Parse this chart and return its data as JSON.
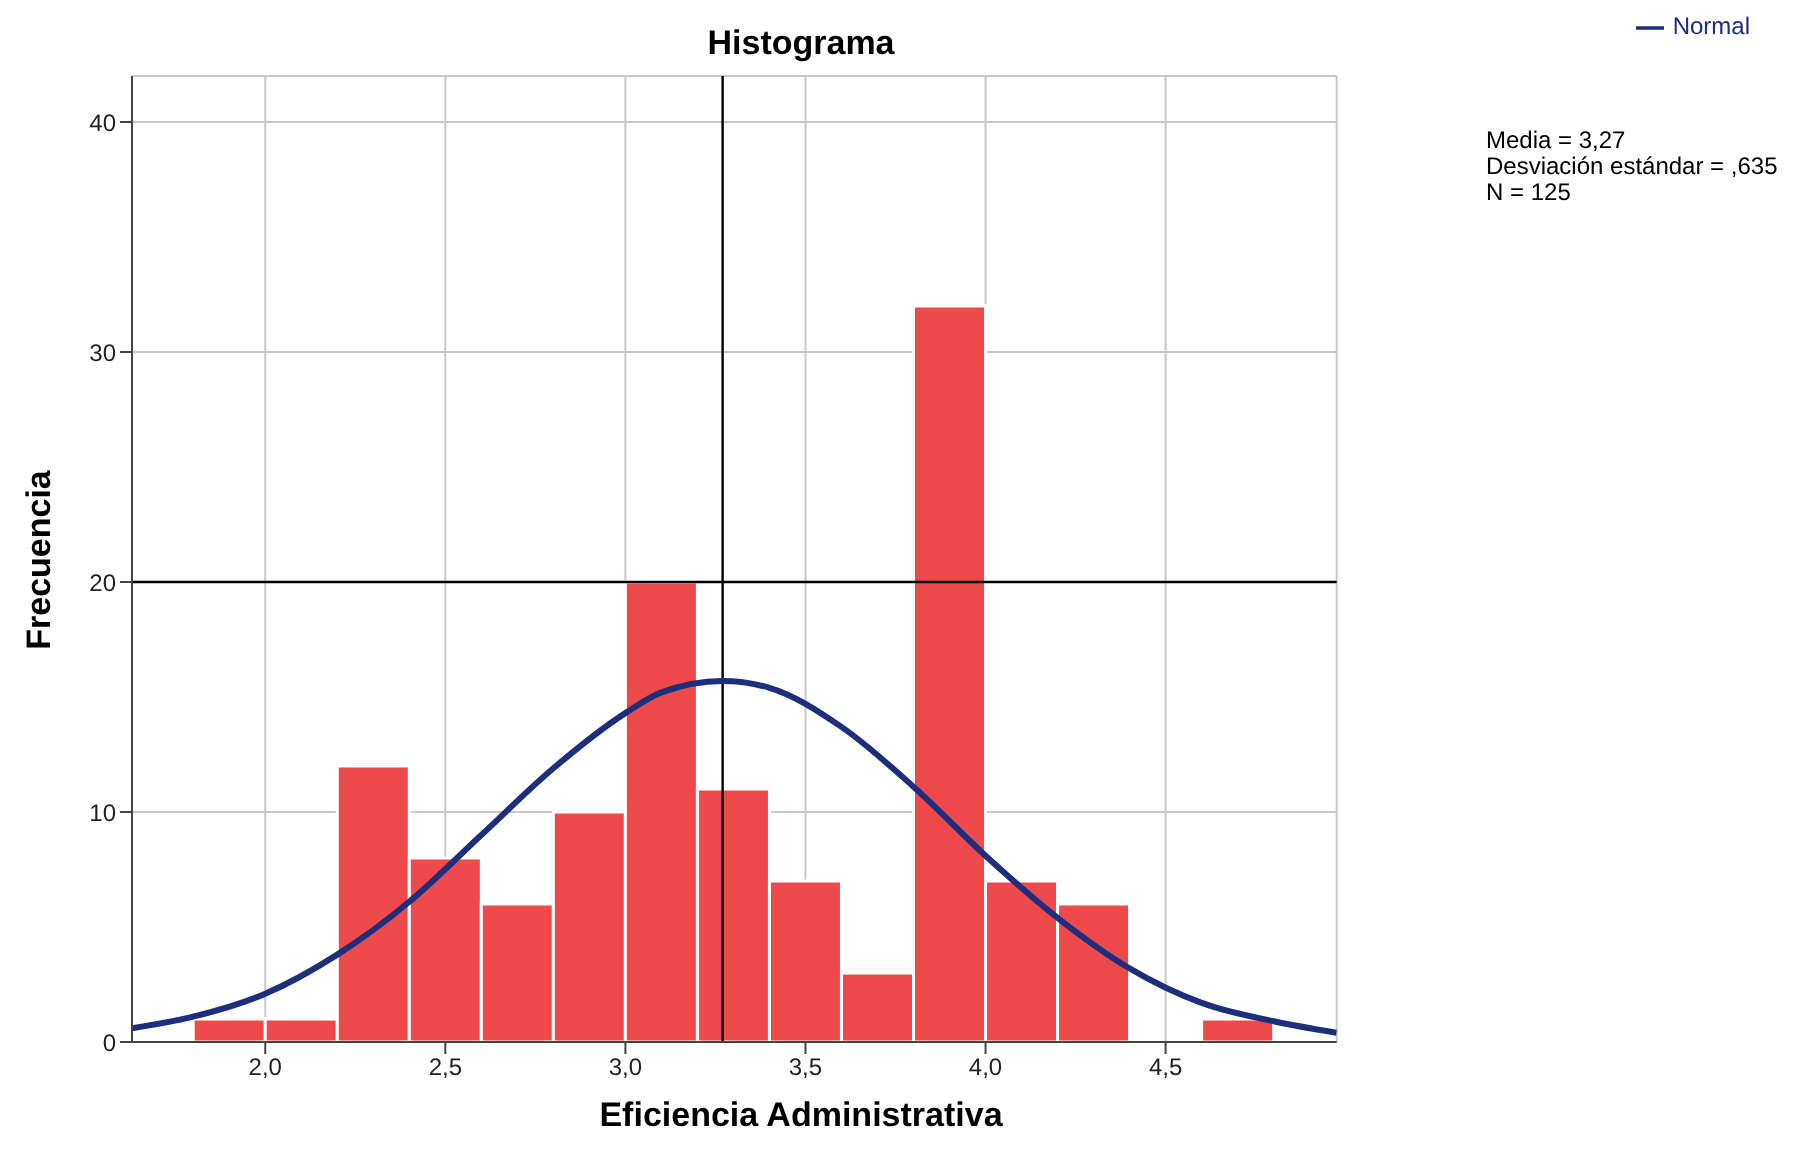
{
  "chart_data": {
    "type": "histogram",
    "title": "Histograma",
    "xlabel": "Eficiencia Administrativa",
    "ylabel": "Frecuencia",
    "bins": [
      1.8,
      2.0,
      2.2,
      2.4,
      2.6,
      2.8,
      3.0,
      3.2,
      3.4,
      3.6,
      3.8,
      4.0,
      4.2,
      4.4,
      4.6,
      4.8
    ],
    "values": [
      1,
      1,
      12,
      8,
      6,
      10,
      20,
      11,
      7,
      3,
      32,
      7,
      6,
      0,
      1
    ],
    "color": "#ee4a4b",
    "series": [
      {
        "type": "line",
        "name": "Normal",
        "color": "#1c2e7c",
        "x": [
          1.63,
          1.8,
          2.0,
          2.2,
          2.4,
          2.6,
          2.8,
          3.0,
          3.1,
          3.27,
          3.4,
          3.6,
          3.8,
          4.0,
          4.2,
          4.4,
          4.6,
          4.8,
          4.975
        ],
        "values": [
          0.6,
          1.1,
          2.1,
          3.8,
          6.1,
          9.0,
          11.9,
          14.3,
          15.2,
          15.7,
          15.4,
          13.7,
          11.1,
          8.1,
          5.4,
          3.2,
          1.7,
          0.9,
          0.4
        ]
      }
    ],
    "xlim": [
      1.63,
      4.975
    ],
    "xticks": [
      {
        "value": 2.0,
        "label": "2,0"
      },
      {
        "value": 2.5,
        "label": "2,5"
      },
      {
        "value": 3.0,
        "label": "3,0"
      },
      {
        "value": 3.5,
        "label": "3,5"
      },
      {
        "value": 4.0,
        "label": "4,0"
      },
      {
        "value": 4.5,
        "label": "4,5"
      }
    ],
    "ylim": [
      0,
      42
    ],
    "yticks": [
      0,
      10,
      20,
      30,
      40
    ],
    "grid": true,
    "legend": "top right",
    "ref_lines": [
      {
        "axis": "x",
        "value": 3.27,
        "color": "#000000"
      },
      {
        "axis": "y",
        "value": 20,
        "color": "#000000"
      }
    ],
    "annotations": [
      "Media = 3,27",
      "Desviación estándar = ,635",
      "N = 125"
    ]
  }
}
